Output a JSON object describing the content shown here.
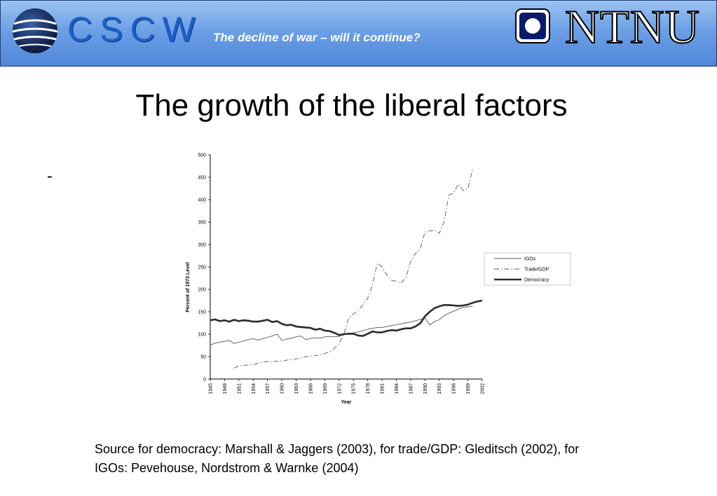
{
  "header": {
    "logo_text": "CSCW",
    "subtitle": "The decline of war – will it continue?",
    "university_logo_text": "NTNU"
  },
  "slide": {
    "title": "The growth of the liberal factors",
    "bullet": "-",
    "source": "Source for democracy: Marshall & Jaggers (2003), for trade/GDP: Gleditsch (2002), for IGOs: Pevehouse, Nordstrom & Warnke (2004)"
  },
  "chart_data": {
    "type": "line",
    "xlabel": "Year",
    "ylabel": "Percent of 1973 Level",
    "ylim": [
      0,
      500
    ],
    "xlim": [
      1945,
      2002
    ],
    "yticks": [
      0,
      50,
      100,
      150,
      200,
      250,
      300,
      350,
      400,
      450,
      500
    ],
    "xticks": [
      1945,
      1948,
      1951,
      1954,
      1957,
      1960,
      1963,
      1966,
      1969,
      1972,
      1975,
      1978,
      1981,
      1984,
      1987,
      1990,
      1993,
      1996,
      1999,
      2002
    ],
    "legend_position": "right",
    "grid": false,
    "series": [
      {
        "name": "IGOs",
        "style": "thin-solid",
        "color": "#555555",
        "x": [
          1945,
          1946,
          1947,
          1948,
          1949,
          1950,
          1951,
          1952,
          1953,
          1954,
          1955,
          1956,
          1957,
          1958,
          1959,
          1960,
          1961,
          1962,
          1963,
          1964,
          1965,
          1966,
          1967,
          1968,
          1969,
          1970,
          1971,
          1972,
          1973,
          1974,
          1975,
          1976,
          1977,
          1978,
          1979,
          1980,
          1981,
          1982,
          1983,
          1984,
          1985,
          1986,
          1987,
          1988,
          1989,
          1990,
          1991,
          1992,
          1993,
          1994,
          1995,
          1996,
          1997,
          1998,
          1999,
          2000
        ],
        "y": [
          76,
          80,
          82,
          84,
          86,
          79,
          82,
          85,
          88,
          90,
          87,
          90,
          93,
          96,
          100,
          86,
          89,
          91,
          94,
          96,
          88,
          90,
          92,
          91,
          94,
          95,
          94,
          95,
          100,
          101,
          103,
          105,
          108,
          111,
          113,
          115,
          115,
          117,
          119,
          121,
          123,
          125,
          127,
          130,
          133,
          136,
          121,
          128,
          132,
          141,
          147,
          151,
          156,
          160,
          161,
          162
        ]
      },
      {
        "name": "Trade/GDP",
        "style": "dash-dot",
        "color": "#555555",
        "x": [
          1950,
          1951,
          1952,
          1953,
          1954,
          1955,
          1956,
          1957,
          1958,
          1959,
          1960,
          1961,
          1962,
          1963,
          1964,
          1965,
          1966,
          1967,
          1968,
          1969,
          1970,
          1971,
          1972,
          1973,
          1974,
          1975,
          1976,
          1977,
          1978,
          1979,
          1980,
          1981,
          1982,
          1983,
          1984,
          1985,
          1986,
          1987,
          1988,
          1989,
          1990,
          1991,
          1992,
          1993,
          1994,
          1995,
          1996,
          1997,
          1998,
          1999,
          2000
        ],
        "y": [
          24,
          30,
          31,
          31,
          32,
          35,
          38,
          39,
          38,
          40,
          40,
          42,
          43,
          45,
          47,
          50,
          51,
          52,
          54,
          57,
          61,
          68,
          80,
          100,
          135,
          145,
          153,
          165,
          180,
          210,
          258,
          250,
          232,
          220,
          218,
          215,
          225,
          262,
          280,
          290,
          328,
          330,
          332,
          325,
          350,
          410,
          415,
          435,
          420,
          425,
          468
        ]
      },
      {
        "name": "Democracy",
        "style": "thick-solid",
        "color": "#2b2b2b",
        "x": [
          1945,
          1946,
          1947,
          1948,
          1949,
          1950,
          1951,
          1952,
          1953,
          1954,
          1955,
          1956,
          1957,
          1958,
          1959,
          1960,
          1961,
          1962,
          1963,
          1964,
          1965,
          1966,
          1967,
          1968,
          1969,
          1970,
          1971,
          1972,
          1973,
          1974,
          1975,
          1976,
          1977,
          1978,
          1979,
          1980,
          1981,
          1982,
          1983,
          1984,
          1985,
          1986,
          1987,
          1988,
          1989,
          1990,
          1991,
          1992,
          1993,
          1994,
          1995,
          1996,
          1997,
          1998,
          1999,
          2000,
          2001,
          2002
        ],
        "y": [
          131,
          133,
          129,
          131,
          128,
          132,
          129,
          131,
          130,
          128,
          128,
          130,
          132,
          127,
          129,
          123,
          120,
          121,
          117,
          116,
          115,
          114,
          110,
          112,
          108,
          107,
          103,
          98,
          100,
          101,
          101,
          97,
          96,
          101,
          106,
          104,
          104,
          107,
          109,
          108,
          111,
          113,
          113,
          117,
          124,
          140,
          150,
          158,
          162,
          165,
          165,
          164,
          163,
          164,
          166,
          170,
          173,
          175
        ]
      }
    ]
  }
}
